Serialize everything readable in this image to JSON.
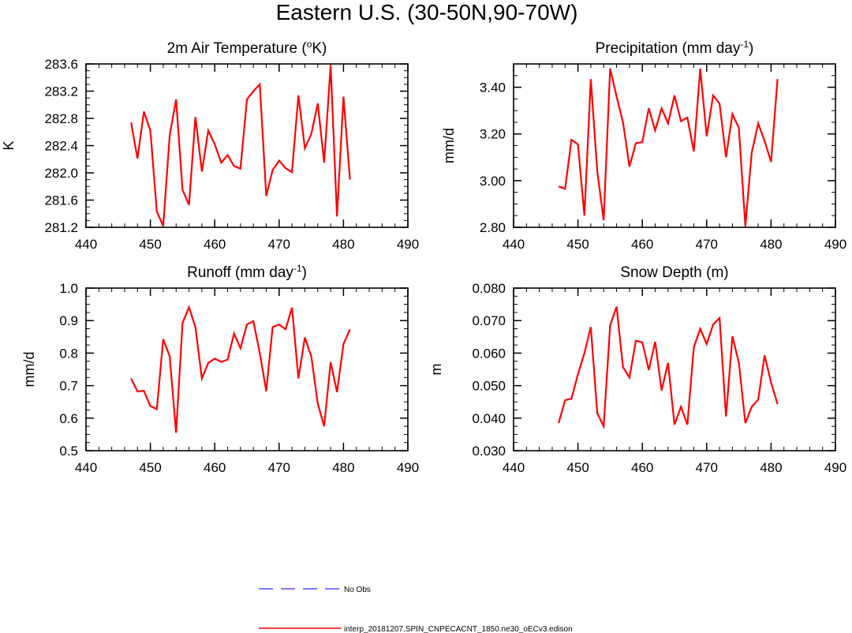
{
  "figure": {
    "title": "Eastern U.S. (30-50N,90-70W)"
  },
  "chart_data": [
    {
      "type": "line",
      "id": "temp",
      "title": "2m Air Temperature (°K)",
      "title_parts": [
        "2m Air Temperature (",
        "o",
        "K)"
      ],
      "xlabel": "",
      "ylabel": "K",
      "xlim": [
        440,
        490
      ],
      "ylim": [
        281.2,
        283.6
      ],
      "xticks": [
        440,
        450,
        460,
        470,
        480,
        490
      ],
      "xtick_labels": [
        "440",
        "450",
        "460",
        "470",
        "480",
        "490"
      ],
      "yticks": [
        281.2,
        281.6,
        282.0,
        282.4,
        282.8,
        283.2,
        283.6
      ],
      "ytick_labels": [
        "281.2",
        "281.6",
        "282.0",
        "282.4",
        "282.8",
        "283.2",
        "283.6"
      ],
      "x": [
        447,
        448,
        449,
        450,
        451,
        452,
        453,
        454,
        455,
        456,
        457,
        458,
        459,
        460,
        461,
        462,
        463,
        464,
        465,
        466,
        467,
        468,
        469,
        470,
        471,
        472,
        473,
        474,
        475,
        476,
        477,
        478,
        479,
        480,
        481
      ],
      "series": [
        {
          "name": "interp_20181207.SPIN_CNPECACNT_1850.ne30_oECv3.edison",
          "color": "#ff0000",
          "values": [
            282.74,
            282.21,
            282.9,
            282.62,
            281.43,
            281.22,
            282.55,
            283.08,
            281.75,
            281.53,
            282.82,
            282.02,
            282.62,
            282.42,
            282.15,
            282.26,
            282.1,
            282.06,
            283.08,
            283.2,
            283.3,
            281.66,
            282.04,
            282.18,
            282.07,
            282.01,
            283.14,
            282.36,
            282.57,
            283.02,
            282.15,
            283.58,
            281.36,
            283.12,
            281.9
          ]
        }
      ]
    },
    {
      "type": "line",
      "id": "precip",
      "title": "Precipitation (mm day-1)",
      "title_parts": [
        "Precipitation (mm day",
        "-1",
        ")"
      ],
      "xlabel": "",
      "ylabel": "mm/d",
      "xlim": [
        440,
        490
      ],
      "ylim": [
        2.8,
        3.5
      ],
      "xticks": [
        440,
        450,
        460,
        470,
        480,
        490
      ],
      "xtick_labels": [
        "440",
        "450",
        "460",
        "470",
        "480",
        "490"
      ],
      "yticks": [
        2.8,
        3.0,
        3.2,
        3.4
      ],
      "ytick_labels": [
        "2.80",
        "3.00",
        "3.20",
        "3.40"
      ],
      "x": [
        447,
        448,
        449,
        450,
        451,
        452,
        453,
        454,
        455,
        456,
        457,
        458,
        459,
        460,
        461,
        462,
        463,
        464,
        465,
        466,
        467,
        468,
        469,
        470,
        471,
        472,
        473,
        474,
        475,
        476,
        477,
        478,
        479,
        480,
        481
      ],
      "series": [
        {
          "name": "interp_20181207.SPIN_CNPECACNT_1850.ne30_oECv3.edison",
          "color": "#ff0000",
          "values": [
            2.975,
            2.965,
            3.175,
            3.155,
            2.85,
            3.435,
            3.04,
            2.83,
            3.48,
            3.36,
            3.25,
            3.06,
            3.16,
            3.165,
            3.31,
            3.215,
            3.31,
            3.245,
            3.365,
            3.255,
            3.27,
            3.125,
            3.48,
            3.19,
            3.365,
            3.33,
            3.1,
            3.285,
            3.225,
            2.805,
            3.12,
            3.245,
            3.17,
            3.08,
            3.435
          ]
        }
      ]
    },
    {
      "type": "line",
      "id": "runoff",
      "title": "Runoff (mm day-1)",
      "title_parts": [
        "Runoff (mm day",
        "-1",
        ")"
      ],
      "xlabel": "",
      "ylabel": "mm/d",
      "xlim": [
        440,
        490
      ],
      "ylim": [
        0.5,
        1.0
      ],
      "xticks": [
        440,
        450,
        460,
        470,
        480,
        490
      ],
      "xtick_labels": [
        "440",
        "450",
        "460",
        "470",
        "480",
        "490"
      ],
      "yticks": [
        0.5,
        0.6,
        0.7,
        0.8,
        0.9,
        1.0
      ],
      "ytick_labels": [
        "0.5",
        "0.6",
        "0.7",
        "0.8",
        "0.9",
        "1.0"
      ],
      "x": [
        447,
        448,
        449,
        450,
        451,
        452,
        453,
        454,
        455,
        456,
        457,
        458,
        459,
        460,
        461,
        462,
        463,
        464,
        465,
        466,
        467,
        468,
        469,
        470,
        471,
        472,
        473,
        474,
        475,
        476,
        477,
        478,
        479,
        480,
        481
      ],
      "series": [
        {
          "name": "interp_20181207.SPIN_CNPECACNT_1850.ne30_oECv3.edison",
          "color": "#ff0000",
          "values": [
            0.722,
            0.682,
            0.684,
            0.637,
            0.628,
            0.843,
            0.79,
            0.555,
            0.893,
            0.941,
            0.88,
            0.722,
            0.77,
            0.783,
            0.773,
            0.78,
            0.86,
            0.815,
            0.888,
            0.898,
            0.8,
            0.683,
            0.88,
            0.888,
            0.873,
            0.94,
            0.722,
            0.848,
            0.79,
            0.645,
            0.575,
            0.772,
            0.68,
            0.828,
            0.873
          ]
        }
      ]
    },
    {
      "type": "line",
      "id": "snow",
      "title": "Snow Depth (m)",
      "title_parts": [
        "Snow Depth (m)",
        "",
        ""
      ],
      "xlabel": "",
      "ylabel": "m",
      "xlim": [
        440,
        490
      ],
      "ylim": [
        0.03,
        0.08
      ],
      "xticks": [
        440,
        450,
        460,
        470,
        480,
        490
      ],
      "xtick_labels": [
        "440",
        "450",
        "460",
        "470",
        "480",
        "490"
      ],
      "yticks": [
        0.03,
        0.04,
        0.05,
        0.06,
        0.07,
        0.08
      ],
      "ytick_labels": [
        "0.030",
        "0.040",
        "0.050",
        "0.060",
        "0.070",
        "0.080"
      ],
      "x": [
        447,
        448,
        449,
        450,
        451,
        452,
        453,
        454,
        455,
        456,
        457,
        458,
        459,
        460,
        461,
        462,
        463,
        464,
        465,
        466,
        467,
        468,
        469,
        470,
        471,
        472,
        473,
        474,
        475,
        476,
        477,
        478,
        479,
        480,
        481
      ],
      "series": [
        {
          "name": "interp_20181207.SPIN_CNPECACNT_1850.ne30_oECv3.edison",
          "color": "#ff0000",
          "values": [
            0.0385,
            0.0455,
            0.046,
            0.0535,
            0.06,
            0.068,
            0.0415,
            0.0375,
            0.0685,
            0.0743,
            0.0557,
            0.0525,
            0.0638,
            0.0633,
            0.0548,
            0.0635,
            0.0485,
            0.057,
            0.038,
            0.0435,
            0.038,
            0.0618,
            0.0675,
            0.0628,
            0.0688,
            0.0708,
            0.0405,
            0.0652,
            0.057,
            0.0385,
            0.0435,
            0.0457,
            0.0593,
            0.051,
            0.0443
          ]
        }
      ]
    }
  ],
  "legend": {
    "items": [
      {
        "label": "No Obs",
        "color": "#4d4dff",
        "style": "dashed"
      },
      {
        "label": "interp_20181207.SPIN_CNPECACNT_1850.ne30_oECv3.edison",
        "color": "#ff0000",
        "style": "solid"
      }
    ]
  }
}
